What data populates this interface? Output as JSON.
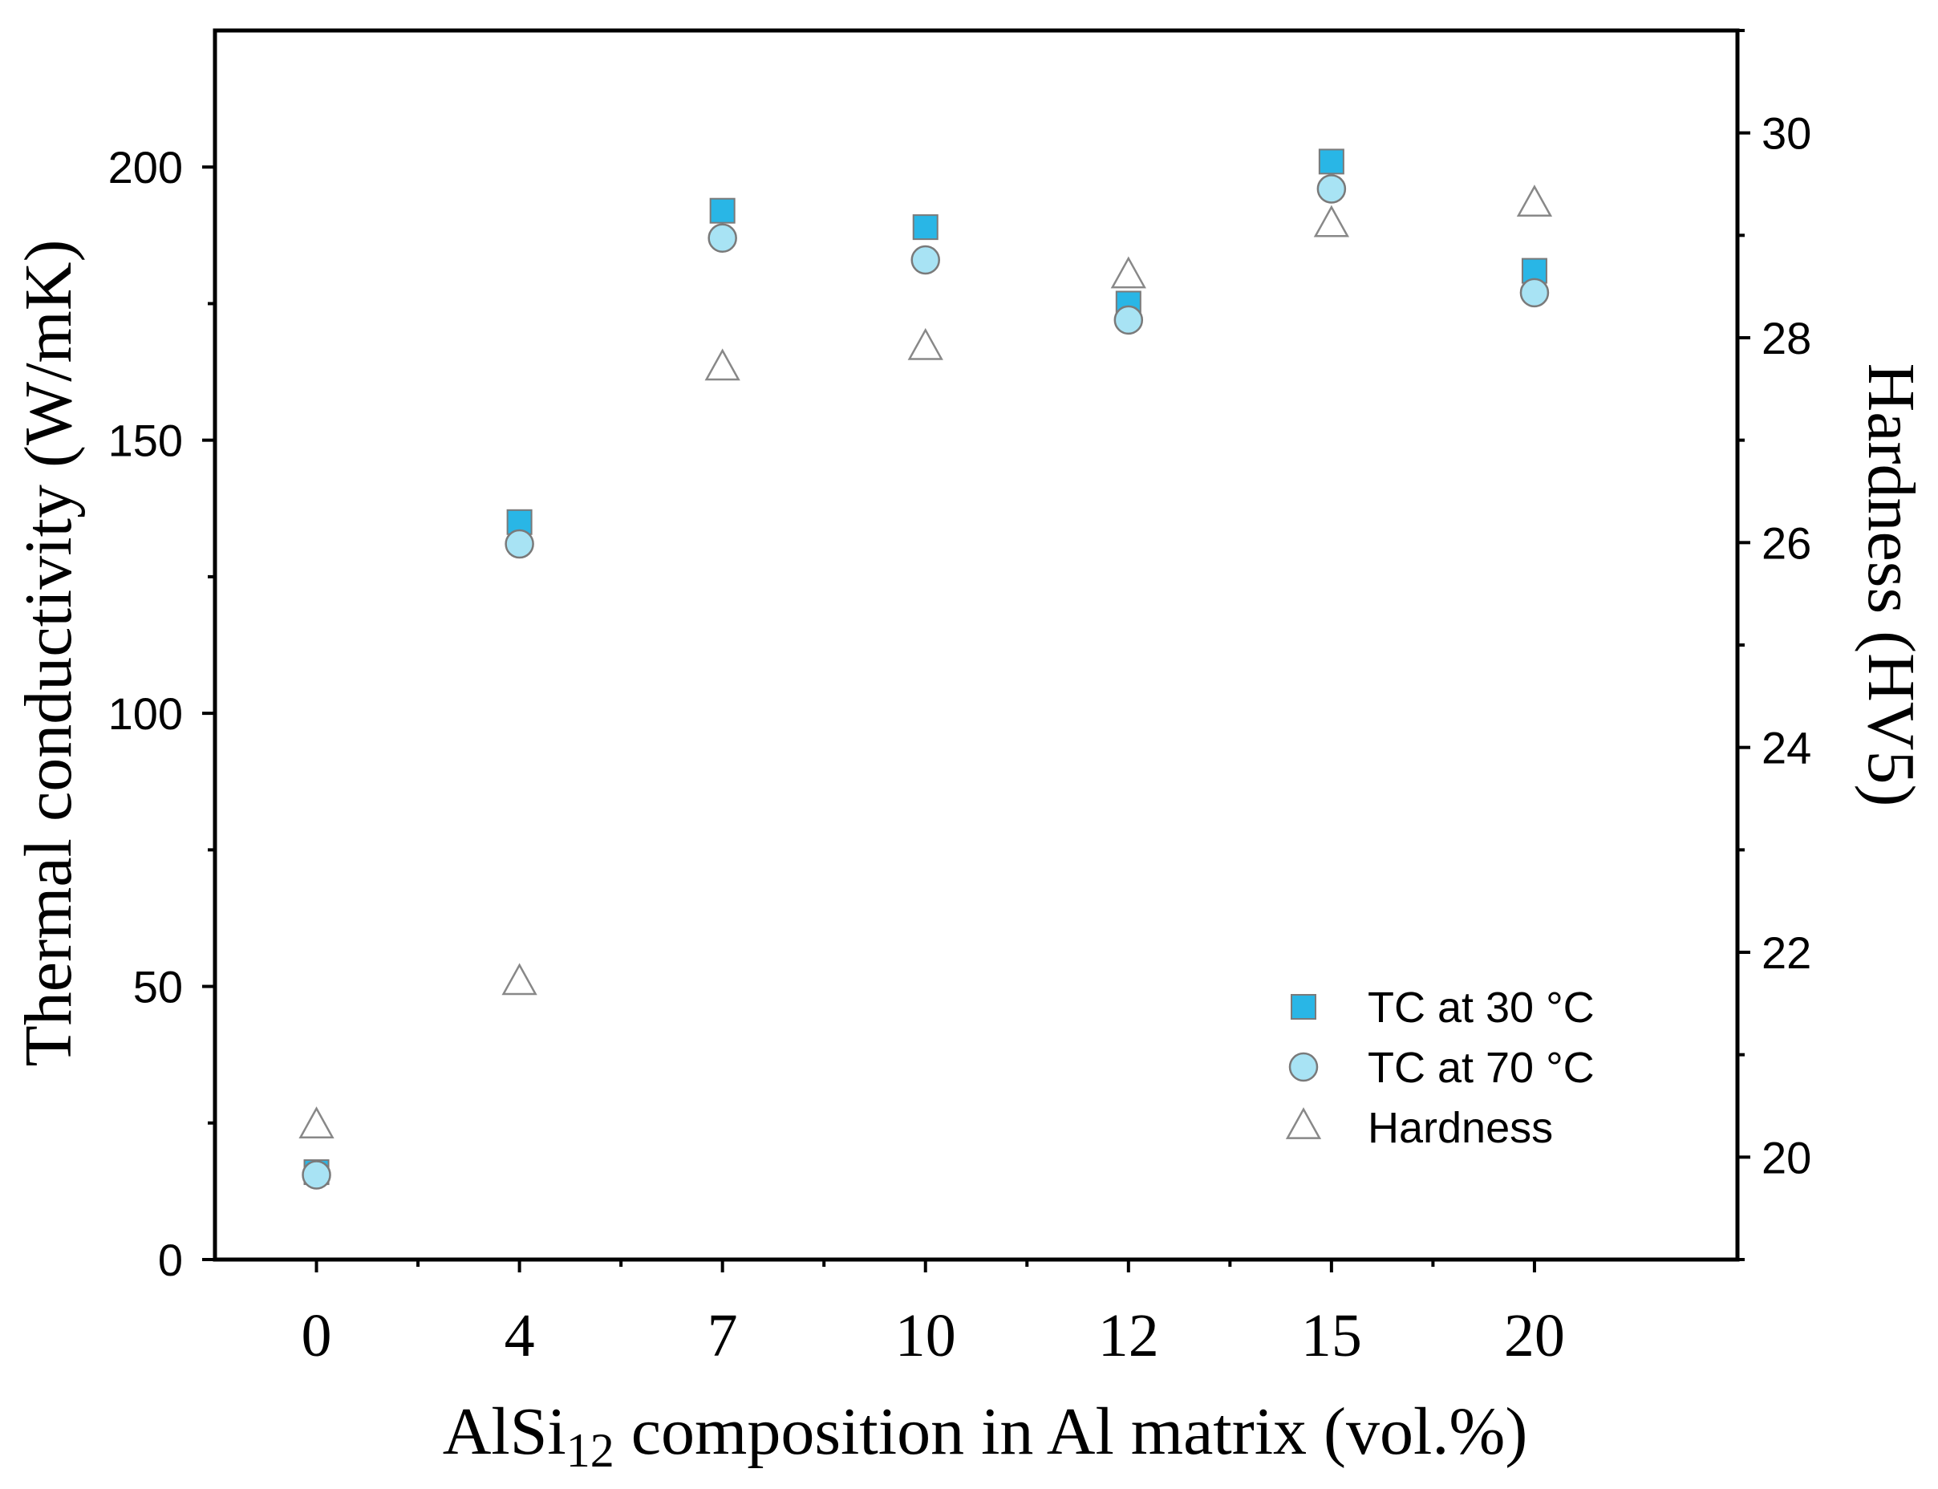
{
  "chart_data": {
    "type": "scatter",
    "categories": [
      "0",
      "4",
      "7",
      "10",
      "12",
      "15",
      "20"
    ],
    "xlabel": {
      "main": "AlSi",
      "sub": "12",
      "rest": " composition in Al matrix (vol.%)"
    },
    "ylabel_left": "Thermal conductivity (W/mK)",
    "ylabel_right": "Hardness (HV5)",
    "ylim_left": [
      0,
      225
    ],
    "yticks_left": [
      0,
      50,
      100,
      150,
      200
    ],
    "ylim_right": [
      19,
      31
    ],
    "yticks_right": [
      20,
      22,
      24,
      26,
      28,
      30
    ],
    "legend_position": "bottom-right",
    "series": [
      {
        "name": "TC at 30 °C",
        "axis": "left",
        "marker": "square",
        "color": "#29b6e6",
        "edge": "#7a7a7a",
        "values": [
          16,
          135,
          192,
          189,
          175,
          201,
          181
        ]
      },
      {
        "name": "TC at 70 °C",
        "axis": "left",
        "marker": "circle",
        "color": "#a8e3f4",
        "edge": "#7a7a7a",
        "values": [
          15.5,
          131,
          187,
          183,
          172,
          196,
          177
        ]
      },
      {
        "name": "Hardness",
        "axis": "right",
        "marker": "triangle",
        "color": "#ffffff",
        "edge": "#888888",
        "values": [
          20.3,
          21.7,
          27.7,
          27.9,
          28.6,
          29.1,
          29.3
        ]
      }
    ]
  }
}
